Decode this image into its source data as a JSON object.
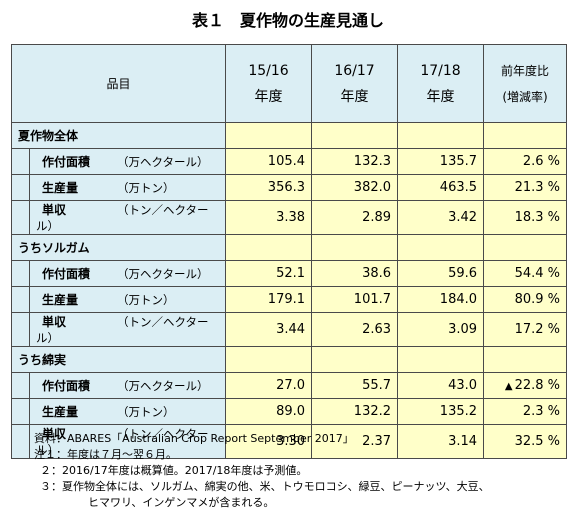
{
  "title": "表１　夏作物の生産見通し",
  "table": {
    "item_header": "品目",
    "years": [
      {
        "line1": "15/16",
        "line2": "年度"
      },
      {
        "line1": "16/17",
        "line2": "年度"
      },
      {
        "line1": "17/18",
        "line2": "年度"
      }
    ],
    "change_header": {
      "line1": "前年度比",
      "line2": "(増減率)"
    },
    "sections": [
      {
        "name": "夏作物全体",
        "rows": [
          {
            "label": "作付面積",
            "unit": "（万ヘクタール）",
            "values": [
              "105.4",
              "132.3",
              "135.7"
            ],
            "change": "2.6 %",
            "change_mark": ""
          },
          {
            "label": "生産量",
            "unit": "（万トン）",
            "values": [
              "356.3",
              "382.0",
              "463.5"
            ],
            "change": "21.3 %",
            "change_mark": ""
          },
          {
            "label": "単収",
            "unit": "（トン／ヘクタール）",
            "values": [
              "3.38",
              "2.89",
              "3.42"
            ],
            "change": "18.3 %",
            "change_mark": ""
          }
        ]
      },
      {
        "name": "うちソルガム",
        "rows": [
          {
            "label": "作付面積",
            "unit": "（万ヘクタール）",
            "values": [
              "52.1",
              "38.6",
              "59.6"
            ],
            "change": "54.4 %",
            "change_mark": ""
          },
          {
            "label": "生産量",
            "unit": "（万トン）",
            "values": [
              "179.1",
              "101.7",
              "184.0"
            ],
            "change": "80.9 %",
            "change_mark": ""
          },
          {
            "label": "単収",
            "unit": "（トン／ヘクタール）",
            "values": [
              "3.44",
              "2.63",
              "3.09"
            ],
            "change": "17.2 %",
            "change_mark": ""
          }
        ]
      },
      {
        "name": "うち綿実",
        "rows": [
          {
            "label": "作付面積",
            "unit": "（万ヘクタール）",
            "values": [
              "27.0",
              "55.7",
              "43.0"
            ],
            "change": "22.8 %",
            "change_mark": "▲"
          },
          {
            "label": "生産量",
            "unit": "（万トン）",
            "values": [
              "89.0",
              "132.2",
              "135.2"
            ],
            "change": "2.3 %",
            "change_mark": ""
          },
          {
            "label": "単収",
            "unit": "（トン／ヘクタール）",
            "values": [
              "3.30",
              "2.37",
              "3.14"
            ],
            "change": "32.5 %",
            "change_mark": ""
          }
        ]
      }
    ]
  },
  "notes": {
    "source": "資料：ABARES「Australian Crop Report September 2017」",
    "note1": "注１：年度は７月～翌６月。",
    "note2_num": "２：",
    "note2": "2016/17年度は概算値。2017/18年度は予測値。",
    "note3_num": "３：",
    "note3": "夏作物全体には、ソルガム、綿実の他、米、トウモロコシ、緑豆、ピーナッツ、大豆、",
    "note3_cont": "ヒマワリ、インゲンマメが含まれる。"
  }
}
